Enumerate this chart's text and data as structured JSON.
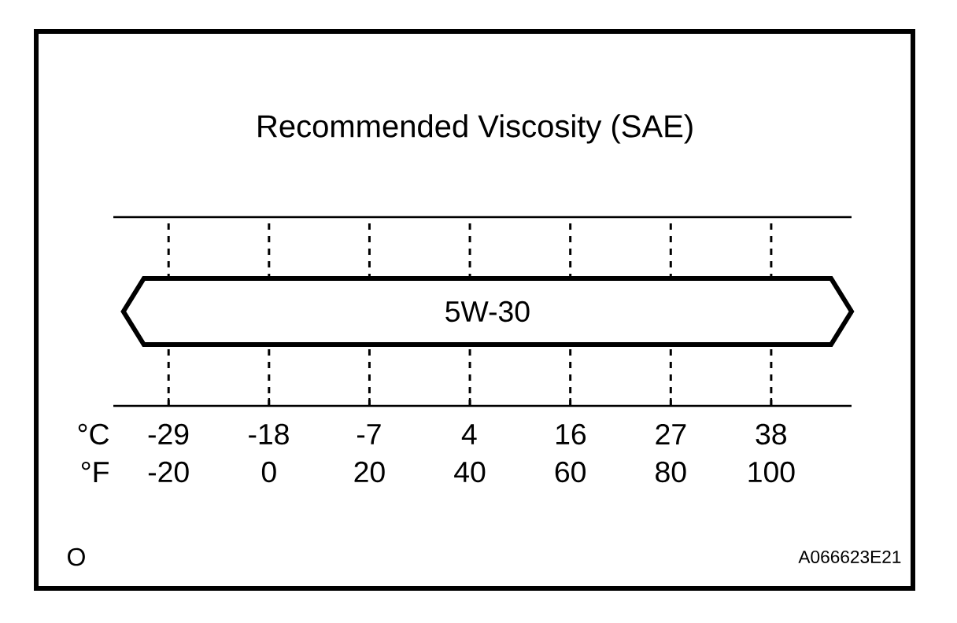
{
  "chart_data": {
    "type": "bar",
    "orientation": "horizontal",
    "title": "Recommended Viscosity (SAE)",
    "categories": [
      "5W-30"
    ],
    "values": [
      145
    ],
    "base": [
      -29
    ],
    "color": "#ffffff",
    "xlabel": "°F",
    "xlim": [
      -31,
      116
    ],
    "xticks": [
      -20,
      0,
      20,
      40,
      60,
      80,
      100
    ],
    "x2label": "°C",
    "x2lim": [
      -35,
      46.7
    ],
    "x2ticks": [
      {
        "value": -28.9,
        "label": "-29"
      },
      {
        "value": -17.8,
        "label": "-18"
      },
      {
        "value": -6.7,
        "label": "-7"
      },
      {
        "value": 4.4,
        "label": "4"
      },
      {
        "value": 15.6,
        "label": "16"
      },
      {
        "value": 26.7,
        "label": "27"
      },
      {
        "value": 37.8,
        "label": "38"
      }
    ],
    "grid": "x",
    "annotations": [
      "O",
      "A066623E21"
    ]
  }
}
